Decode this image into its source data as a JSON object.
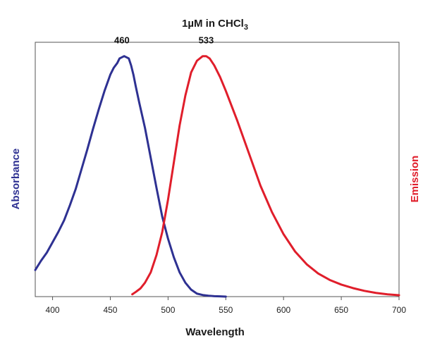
{
  "chart_data": {
    "type": "line",
    "title": "1µM in CHCl",
    "title_subscript": "3",
    "xlabel": "Wavelength",
    "ylabel_left": "Absorbance",
    "ylabel_right": "Emission",
    "xlim": [
      385,
      700
    ],
    "ylim": [
      0,
      1.1
    ],
    "xticks": [
      400,
      450,
      500,
      550,
      600,
      650,
      700
    ],
    "grid": false,
    "legend": "none",
    "colors": {
      "absorbance": "#2e3192",
      "emission": "#e01e2b",
      "ylabel_left": "#2e3192",
      "ylabel_right": "#e01e2b"
    },
    "series": [
      {
        "x": [
          385,
          390,
          395,
          400,
          405,
          410,
          415,
          420,
          425,
          430,
          435,
          440,
          445,
          450,
          453,
          456,
          458,
          460,
          462,
          464,
          466,
          468,
          470,
          472,
          475,
          480,
          485,
          490,
          495,
          500,
          505,
          510,
          515,
          520,
          525,
          530,
          535,
          540,
          545,
          550
        ],
        "values": [
          0.115,
          0.155,
          0.19,
          0.235,
          0.28,
          0.33,
          0.395,
          0.465,
          0.55,
          0.635,
          0.725,
          0.81,
          0.89,
          0.96,
          0.99,
          1.01,
          1.03,
          1.035,
          1.04,
          1.035,
          1.03,
          1.0,
          0.96,
          0.91,
          0.84,
          0.73,
          0.6,
          0.47,
          0.345,
          0.25,
          0.17,
          0.105,
          0.06,
          0.03,
          0.013,
          0.007,
          0.004,
          0.002,
          0.001,
          0.0
        ]
      },
      {
        "x": [
          469,
          472,
          476,
          480,
          485,
          490,
          495,
          500,
          505,
          510,
          515,
          520,
          525,
          530,
          533,
          536,
          540,
          545,
          550,
          560,
          570,
          580,
          590,
          600,
          610,
          620,
          630,
          640,
          650,
          660,
          670,
          680,
          690,
          700
        ],
        "values": [
          0.01,
          0.02,
          0.035,
          0.06,
          0.105,
          0.18,
          0.28,
          0.42,
          0.58,
          0.74,
          0.87,
          0.97,
          1.02,
          1.04,
          1.04,
          1.03,
          1.0,
          0.95,
          0.89,
          0.76,
          0.62,
          0.48,
          0.365,
          0.27,
          0.195,
          0.14,
          0.1,
          0.072,
          0.052,
          0.037,
          0.025,
          0.016,
          0.01,
          0.006
        ]
      }
    ],
    "annotations": [
      {
        "text": "460",
        "x": 460,
        "y": 1.04
      },
      {
        "text": "533",
        "x": 533,
        "y": 1.04
      }
    ]
  }
}
